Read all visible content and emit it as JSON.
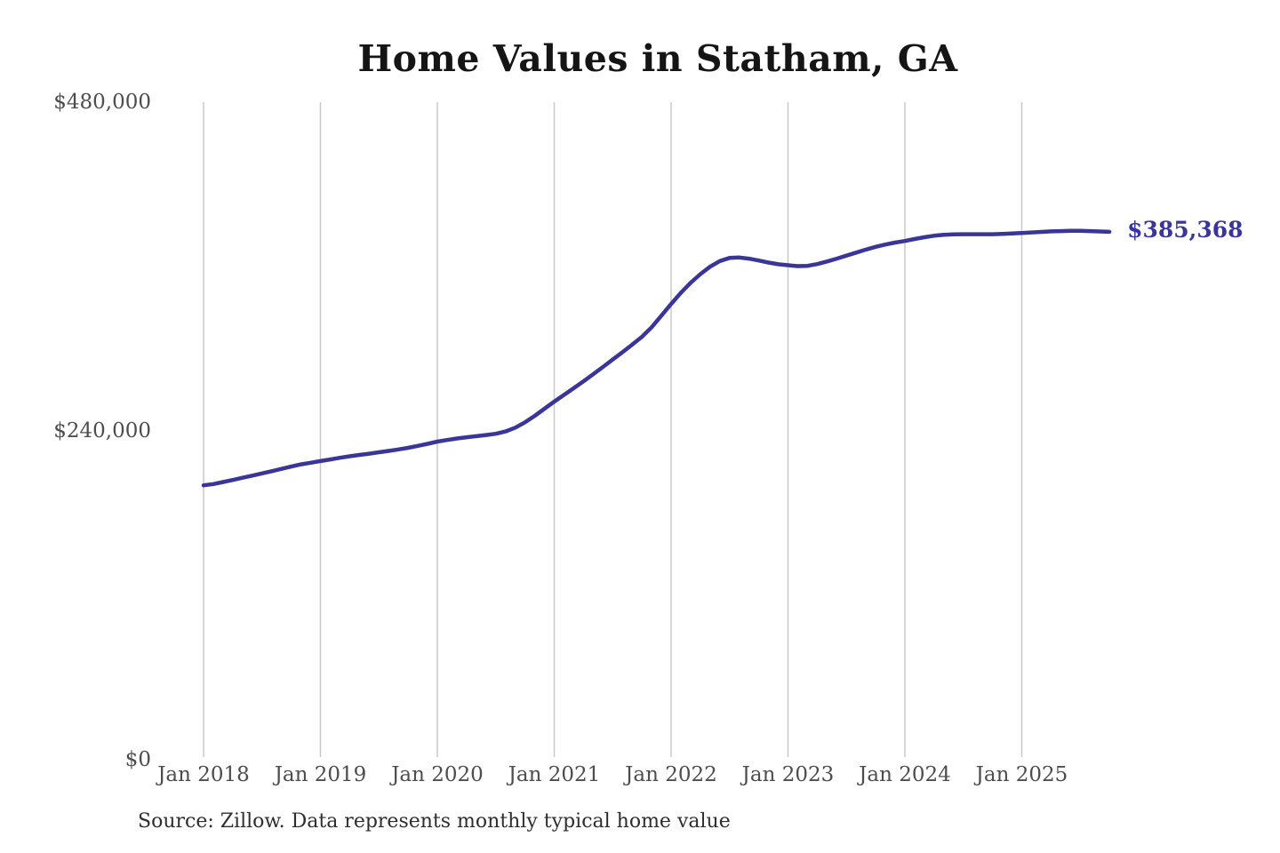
{
  "chart": {
    "title": "Home Values in Statham, GA",
    "end_label": "$385,368",
    "source": "Source: Zillow. Data represents monthly typical home value",
    "colors": {
      "line": "#3a3597",
      "grid": "#c9c9c9",
      "axis_text": "#4d4d4d",
      "title_text": "#151515",
      "source_text": "#2e2e2e",
      "background": "#ffffff"
    }
  },
  "chart_data": {
    "type": "line",
    "title": "Home Values in Statham, GA",
    "xlabel": "",
    "ylabel": "",
    "ylim": [
      0,
      480000
    ],
    "grid": "vertical-yearly-only",
    "legend": "none",
    "x_unit": "month",
    "x_start": "Jan 2018",
    "x_end": "Oct 2025",
    "x_tick_labels": [
      "Jan 2018",
      "Jan 2019",
      "Jan 2020",
      "Jan 2021",
      "Jan 2022",
      "Jan 2023",
      "Jan 2024",
      "Jan 2025"
    ],
    "y_ticks": [
      {
        "label": "$480,000",
        "value": 480000
      },
      {
        "label": "$240,000",
        "value": 240000
      },
      {
        "label": "$0",
        "value": 0
      }
    ],
    "end_annotation": {
      "text": "$385,368",
      "value": 385368
    },
    "series": [
      {
        "name": "Typical home value (monthly)",
        "values": [
          200300,
          201200,
          202700,
          204200,
          205800,
          207400,
          209000,
          210600,
          212300,
          214000,
          215600,
          216800,
          218000,
          219200,
          220400,
          221500,
          222500,
          223400,
          224400,
          225400,
          226500,
          227700,
          229100,
          230600,
          232200,
          233400,
          234500,
          235400,
          236200,
          237000,
          237900,
          239600,
          242400,
          246300,
          251000,
          256200,
          261400,
          266300,
          271200,
          276200,
          281400,
          286700,
          292100,
          297500,
          303000,
          308700,
          315700,
          324100,
          332700,
          340800,
          348100,
          354500,
          359900,
          364000,
          366300,
          366600,
          365800,
          364400,
          362900,
          361700,
          361000,
          360300,
          360500,
          361800,
          363700,
          365800,
          368000,
          370200,
          372400,
          374400,
          376100,
          377500,
          378700,
          380100,
          381400,
          382500,
          383200,
          383500,
          383600,
          383600,
          383600,
          383600,
          383800,
          384100,
          384500,
          384900,
          385300,
          385700,
          385900,
          386100,
          386100,
          385900,
          385600,
          385368
        ]
      }
    ]
  }
}
